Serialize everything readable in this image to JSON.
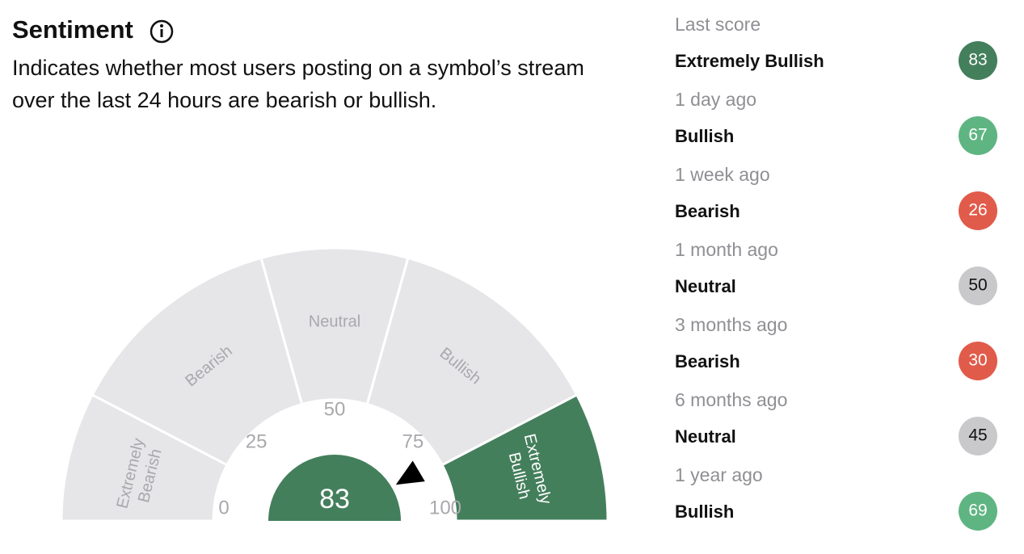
{
  "header": {
    "title": "Sentiment",
    "description": "Indicates whether most users posting on a symbol’s stream over the last 24 hours are bearish or bullish."
  },
  "gauge": {
    "score": 83,
    "segments": [
      "Extremely Bearish",
      "Bearish",
      "Neutral",
      "Bullish",
      "Extremely Bullish"
    ],
    "ticks": [
      0,
      25,
      50,
      75,
      100
    ]
  },
  "history": [
    {
      "period": "Last score",
      "label": "Extremely Bullish",
      "score": 83
    },
    {
      "period": "1 day ago",
      "label": "Bullish",
      "score": 67
    },
    {
      "period": "1 week ago",
      "label": "Bearish",
      "score": 26
    },
    {
      "period": "1 month ago",
      "label": "Neutral",
      "score": 50
    },
    {
      "period": "3 months ago",
      "label": "Bearish",
      "score": 30
    },
    {
      "period": "6 months ago",
      "label": "Neutral",
      "score": 45
    },
    {
      "period": "1 year ago",
      "label": "Bullish",
      "score": 69
    }
  ]
}
